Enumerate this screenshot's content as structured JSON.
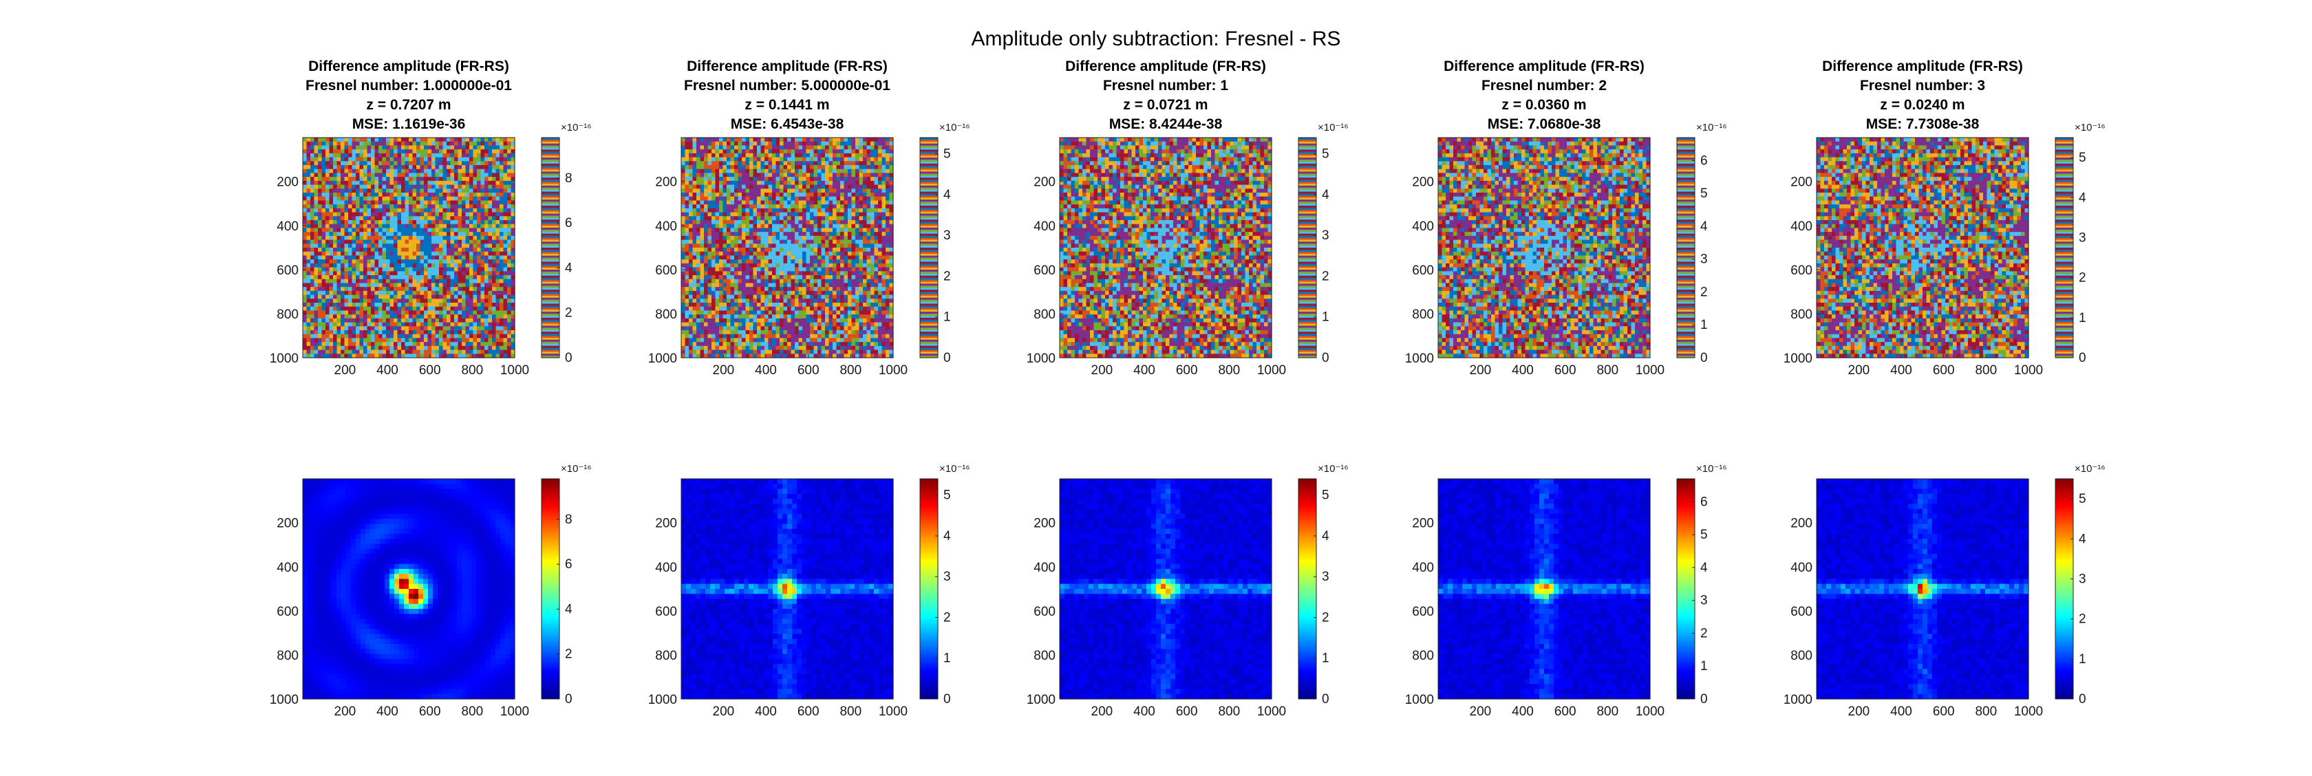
{
  "figure": {
    "title": "Amplitude only subtraction: Fresnel - RS",
    "colormaps": {
      "lines": [
        "#0072BD",
        "#D95319",
        "#EDB120",
        "#7E2F8E",
        "#77AC30",
        "#4DBEEE",
        "#A2142F"
      ],
      "parula": [
        "#352A87",
        "#0363E1",
        "#1485D4",
        "#06A7C6",
        "#38B99E",
        "#92BF73",
        "#D9BA56",
        "#FCCE2E",
        "#F9FB0E"
      ],
      "jet": [
        "#00008F",
        "#0000FF",
        "#0080FF",
        "#00FFFF",
        "#80FF80",
        "#FFFF00",
        "#FF8000",
        "#FF0000",
        "#800000"
      ]
    }
  },
  "chart_data": [
    {
      "type": "heatmap",
      "row": 1,
      "col": 1,
      "colormap": "lines",
      "pattern": "noisy-ring",
      "title_lines": [
        "Difference amplitude (FR-RS)",
        "Fresnel number: 1.000000e-01",
        "z = 0.7207 m",
        "MSE: 1.1619e-36"
      ],
      "x_range": [
        1,
        1000
      ],
      "y_range": [
        1,
        1000
      ],
      "xticks": [
        200,
        400,
        600,
        800,
        1000
      ],
      "yticks": [
        200,
        400,
        600,
        800,
        1000
      ],
      "colorbar": {
        "range": [
          0,
          9.8
        ],
        "ticks": [
          0,
          2,
          4,
          6,
          8
        ],
        "multiplier": "×10⁻¹⁶"
      }
    },
    {
      "type": "heatmap",
      "row": 1,
      "col": 2,
      "colormap": "lines",
      "pattern": "noisy-lattice",
      "title_lines": [
        "Difference amplitude (FR-RS)",
        "Fresnel number: 5.000000e-01",
        "z = 0.1441 m",
        "MSE: 6.4543e-38"
      ],
      "x_range": [
        1,
        1000
      ],
      "y_range": [
        1,
        1000
      ],
      "xticks": [
        200,
        400,
        600,
        800,
        1000
      ],
      "yticks": [
        200,
        400,
        600,
        800,
        1000
      ],
      "colorbar": {
        "range": [
          0,
          5.4
        ],
        "ticks": [
          0,
          1,
          2,
          3,
          4,
          5
        ],
        "multiplier": "×10⁻¹⁶"
      }
    },
    {
      "type": "heatmap",
      "row": 1,
      "col": 3,
      "colormap": "lines",
      "pattern": "noisy-lattice",
      "title_lines": [
        "Difference amplitude (FR-RS)",
        "Fresnel number: 1",
        "z = 0.0721 m",
        "MSE: 8.4244e-38"
      ],
      "x_range": [
        1,
        1000
      ],
      "y_range": [
        1,
        1000
      ],
      "xticks": [
        200,
        400,
        600,
        800,
        1000
      ],
      "yticks": [
        200,
        400,
        600,
        800,
        1000
      ],
      "colorbar": {
        "range": [
          0,
          5.4
        ],
        "ticks": [
          0,
          1,
          2,
          3,
          4,
          5
        ],
        "multiplier": "×10⁻¹⁶"
      }
    },
    {
      "type": "heatmap",
      "row": 1,
      "col": 4,
      "colormap": "lines",
      "pattern": "noisy-lattice",
      "title_lines": [
        "Difference amplitude (FR-RS)",
        "Fresnel number: 2",
        "z = 0.0360 m",
        "MSE: 7.0680e-38"
      ],
      "x_range": [
        1,
        1000
      ],
      "y_range": [
        1,
        1000
      ],
      "xticks": [
        200,
        400,
        600,
        800,
        1000
      ],
      "yticks": [
        200,
        400,
        600,
        800,
        1000
      ],
      "colorbar": {
        "range": [
          0,
          6.7
        ],
        "ticks": [
          0,
          1,
          2,
          3,
          4,
          5,
          6
        ],
        "multiplier": "×10⁻¹⁶"
      }
    },
    {
      "type": "heatmap",
      "row": 1,
      "col": 5,
      "colormap": "lines",
      "pattern": "noisy-lattice",
      "title_lines": [
        "Difference amplitude (FR-RS)",
        "Fresnel number: 3",
        "z = 0.0240 m",
        "MSE: 7.7308e-38"
      ],
      "x_range": [
        1,
        1000
      ],
      "y_range": [
        1,
        1000
      ],
      "xticks": [
        200,
        400,
        600,
        800,
        1000
      ],
      "yticks": [
        200,
        400,
        600,
        800,
        1000
      ],
      "colorbar": {
        "range": [
          0,
          5.5
        ],
        "ticks": [
          0,
          1,
          2,
          3,
          4,
          5
        ],
        "multiplier": "×10⁻¹⁶"
      }
    },
    {
      "type": "heatmap",
      "row": 2,
      "col": 1,
      "colormap": "jet",
      "pattern": "smooth-ring",
      "x_range": [
        1,
        1000
      ],
      "y_range": [
        1,
        1000
      ],
      "xticks": [
        200,
        400,
        600,
        800,
        1000
      ],
      "yticks": [
        200,
        400,
        600,
        800,
        1000
      ],
      "colorbar": {
        "range": [
          0,
          9.8
        ],
        "ticks": [
          0,
          2,
          4,
          6,
          8
        ],
        "multiplier": "×10⁻¹⁶"
      }
    },
    {
      "type": "heatmap",
      "row": 2,
      "col": 2,
      "colormap": "jet",
      "pattern": "center-spot",
      "x_range": [
        1,
        1000
      ],
      "y_range": [
        1,
        1000
      ],
      "xticks": [
        200,
        400,
        600,
        800,
        1000
      ],
      "yticks": [
        200,
        400,
        600,
        800,
        1000
      ],
      "colorbar": {
        "range": [
          0,
          5.4
        ],
        "ticks": [
          0,
          1,
          2,
          3,
          4,
          5
        ],
        "multiplier": "×10⁻¹⁶"
      }
    },
    {
      "type": "heatmap",
      "row": 2,
      "col": 3,
      "colormap": "jet",
      "pattern": "center-spot",
      "x_range": [
        1,
        1000
      ],
      "y_range": [
        1,
        1000
      ],
      "xticks": [
        200,
        400,
        600,
        800,
        1000
      ],
      "yticks": [
        200,
        400,
        600,
        800,
        1000
      ],
      "colorbar": {
        "range": [
          0,
          5.4
        ],
        "ticks": [
          0,
          1,
          2,
          3,
          4,
          5
        ],
        "multiplier": "×10⁻¹⁶"
      }
    },
    {
      "type": "heatmap",
      "row": 2,
      "col": 4,
      "colormap": "jet",
      "pattern": "center-spot",
      "x_range": [
        1,
        1000
      ],
      "y_range": [
        1,
        1000
      ],
      "xticks": [
        200,
        400,
        600,
        800,
        1000
      ],
      "yticks": [
        200,
        400,
        600,
        800,
        1000
      ],
      "colorbar": {
        "range": [
          0,
          6.7
        ],
        "ticks": [
          0,
          1,
          2,
          3,
          4,
          5,
          6
        ],
        "multiplier": "×10⁻¹⁶"
      }
    },
    {
      "type": "heatmap",
      "row": 2,
      "col": 5,
      "colormap": "jet",
      "pattern": "center-spot",
      "x_range": [
        1,
        1000
      ],
      "y_range": [
        1,
        1000
      ],
      "xticks": [
        200,
        400,
        600,
        800,
        1000
      ],
      "yticks": [
        200,
        400,
        600,
        800,
        1000
      ],
      "colorbar": {
        "range": [
          0,
          5.5
        ],
        "ticks": [
          0,
          1,
          2,
          3,
          4,
          5
        ],
        "multiplier": "×10⁻¹⁶"
      }
    }
  ]
}
